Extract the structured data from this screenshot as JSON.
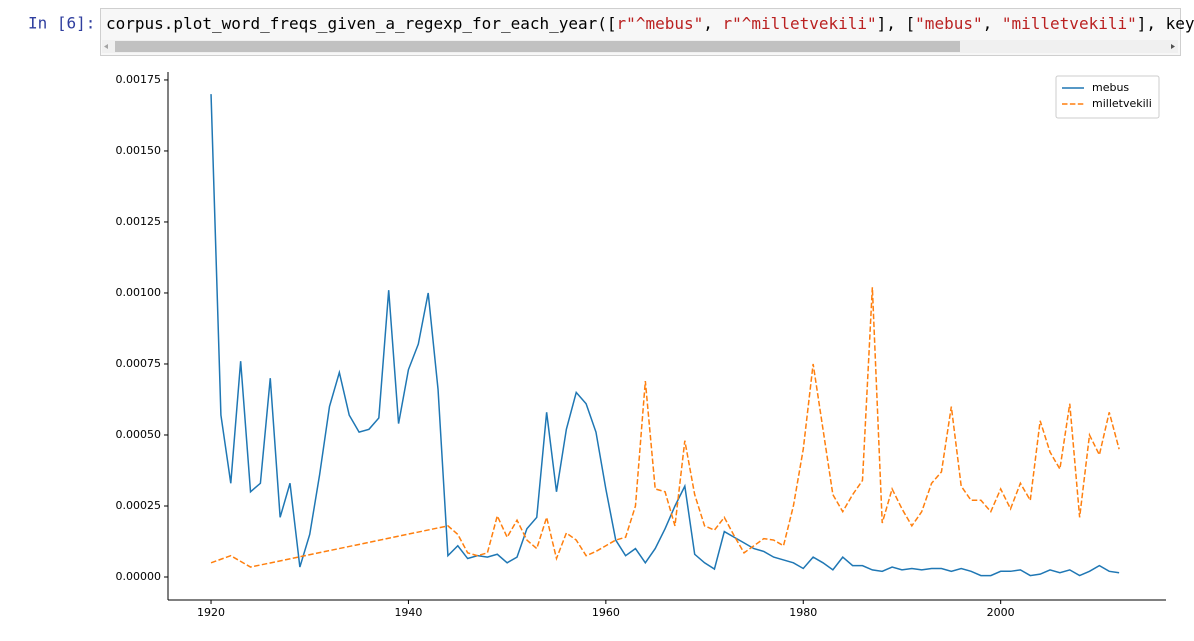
{
  "cell": {
    "prompt": "In [6]:",
    "code": [
      {
        "text": "corpus.plot_word_freqs_given_a_regexp_for_each_year([",
        "color": "#000000"
      },
      {
        "text": "r\"^mebus\"",
        "color": "#BA2121"
      },
      {
        "text": ", ",
        "color": "#000000"
      },
      {
        "text": "r\"^milletvekili\"",
        "color": "#BA2121"
      },
      {
        "text": "], [",
        "color": "#000000"
      },
      {
        "text": "\"mebus\"",
        "color": "#BA2121"
      },
      {
        "text": ", ",
        "color": "#000000"
      },
      {
        "text": "\"milletvekili\"",
        "color": "#BA2121"
      },
      {
        "text": "], keywor",
        "color": "#000000"
      }
    ]
  },
  "chart_data": {
    "type": "line",
    "xlim": [
      1915.64,
      2016.75
    ],
    "xticks": [
      1920,
      1940,
      1960,
      1980,
      2000
    ],
    "ylim": [
      -8.1e-05,
      0.001778
    ],
    "yticks": [
      {
        "value": 0,
        "label": "0.00000"
      },
      {
        "value": 0.00025,
        "label": "0.00025"
      },
      {
        "value": 0.0005,
        "label": "0.00050"
      },
      {
        "value": 0.00075,
        "label": "0.00075"
      },
      {
        "value": 0.001,
        "label": "0.00100"
      },
      {
        "value": 0.00125,
        "label": "0.00125"
      },
      {
        "value": 0.0015,
        "label": "0.00150"
      },
      {
        "value": 0.00175,
        "label": "0.00175"
      }
    ],
    "grid": false,
    "legend": "upper right",
    "series": [
      {
        "name": "mebus",
        "color": "#1f77b4",
        "linestyle": "solid",
        "x": [
          1920,
          1921,
          1922,
          1923,
          1924,
          1925,
          1926,
          1927,
          1928,
          1929,
          1930,
          1931,
          1932,
          1933,
          1934,
          1935,
          1936,
          1937,
          1938,
          1939,
          1940,
          1941,
          1942,
          1943,
          1944,
          1945,
          1946,
          1947,
          1948,
          1949,
          1950,
          1951,
          1952,
          1953,
          1954,
          1955,
          1956,
          1957,
          1958,
          1959,
          1960,
          1961,
          1962,
          1963,
          1964,
          1965,
          1966,
          1967,
          1968,
          1969,
          1970,
          1971,
          1972,
          1973,
          1974,
          1975,
          1976,
          1977,
          1978,
          1979,
          1980,
          1981,
          1982,
          1983,
          1984,
          1985,
          1986,
          1987,
          1988,
          1989,
          1990,
          1991,
          1992,
          1993,
          1994,
          1995,
          1996,
          1997,
          1998,
          1999,
          2000,
          2001,
          2002,
          2003,
          2004,
          2005,
          2006,
          2007,
          2008,
          2009,
          2010,
          2011,
          2012
        ],
        "values": [
          0.0017,
          0.00057,
          0.00033,
          0.00076,
          0.0003,
          0.00033,
          0.0007,
          0.00021,
          0.00033,
          3.5e-05,
          0.00015,
          0.00036,
          0.0006,
          0.00072,
          0.00057,
          0.00051,
          0.00052,
          0.00056,
          0.00101,
          0.00054,
          0.00073,
          0.00082,
          0.001,
          0.00066,
          7.5e-05,
          0.00011,
          6.5e-05,
          7.5e-05,
          7e-05,
          8e-05,
          5e-05,
          7e-05,
          0.00017,
          0.00021,
          0.00058,
          0.0003,
          0.00052,
          0.00065,
          0.00061,
          0.00051,
          0.00031,
          0.00013,
          7.5e-05,
          0.0001,
          5e-05,
          0.0001,
          0.00017,
          0.00025,
          0.00032,
          8e-05,
          5e-05,
          2.8e-05,
          0.00016,
          0.00014,
          0.00012,
          0.0001,
          9e-05,
          7e-05,
          6e-05,
          5e-05,
          3e-05,
          7e-05,
          5e-05,
          2.5e-05,
          7e-05,
          4e-05,
          4e-05,
          2.5e-05,
          2e-05,
          3.5e-05,
          2.5e-05,
          3e-05,
          2.5e-05,
          3e-05,
          3e-05,
          2e-05,
          3e-05,
          2e-05,
          5e-06,
          5e-06,
          2e-05,
          2e-05,
          2.5e-05,
          5e-06,
          1e-05,
          2.5e-05,
          1.5e-05,
          2.5e-05,
          5e-06,
          2e-05,
          4e-05,
          2e-05,
          1.5e-05
        ]
      },
      {
        "name": "milletvekili",
        "color": "#ff7f0e",
        "linestyle": "dashed",
        "x": [
          1920,
          1922,
          1924,
          1944,
          1945,
          1946,
          1947,
          1948,
          1949,
          1950,
          1951,
          1952,
          1953,
          1954,
          1955,
          1956,
          1957,
          1958,
          1959,
          1960,
          1961,
          1962,
          1963,
          1964,
          1965,
          1966,
          1967,
          1968,
          1969,
          1970,
          1971,
          1972,
          1973,
          1974,
          1975,
          1976,
          1977,
          1978,
          1979,
          1980,
          1981,
          1982,
          1983,
          1984,
          1985,
          1986,
          1987,
          1988,
          1989,
          1990,
          1991,
          1992,
          1993,
          1994,
          1995,
          1996,
          1997,
          1998,
          1999,
          2000,
          2001,
          2002,
          2003,
          2004,
          2005,
          2006,
          2007,
          2008,
          2009,
          2010,
          2011,
          2012
        ],
        "values": [
          5e-05,
          7.5e-05,
          3.5e-05,
          0.00018,
          0.00015,
          8.5e-05,
          7.5e-05,
          8.5e-05,
          0.000215,
          0.00014,
          0.0002,
          0.00013,
          0.0001,
          0.00021,
          6.5e-05,
          0.000155,
          0.00013,
          7.5e-05,
          9e-05,
          0.00011,
          0.00013,
          0.00014,
          0.00025,
          0.00069,
          0.00031,
          0.0003,
          0.00018,
          0.00048,
          0.00029,
          0.00018,
          0.000165,
          0.00021,
          0.000145,
          8.5e-05,
          0.00011,
          0.000135,
          0.00013,
          0.00011,
          0.00025,
          0.00045,
          0.00075,
          0.00052,
          0.00029,
          0.00023,
          0.00029,
          0.00034,
          0.00102,
          0.00019,
          0.00031,
          0.00024,
          0.00018,
          0.00023,
          0.00033,
          0.00037,
          0.0006,
          0.00032,
          0.00027,
          0.00027,
          0.00023,
          0.00031,
          0.00024,
          0.00033,
          0.00027,
          0.00055,
          0.00044,
          0.00038,
          0.00061,
          0.00021,
          0.0005,
          0.00043,
          0.00058,
          0.00045
        ]
      }
    ]
  }
}
